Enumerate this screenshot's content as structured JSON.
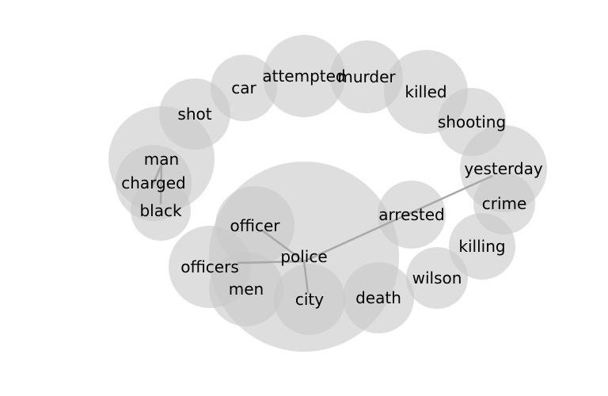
{
  "diagram": {
    "type": "word-cooccurrence-bubble-network",
    "words": [
      {
        "id": "police",
        "label": "police"
      },
      {
        "id": "officer",
        "label": "officer"
      },
      {
        "id": "officers",
        "label": "officers"
      },
      {
        "id": "men",
        "label": "men"
      },
      {
        "id": "city",
        "label": "city"
      },
      {
        "id": "death",
        "label": "death"
      },
      {
        "id": "arrested",
        "label": "arrested"
      },
      {
        "id": "wilson",
        "label": "wilson"
      },
      {
        "id": "killing",
        "label": "killing"
      },
      {
        "id": "crime",
        "label": "crime"
      },
      {
        "id": "yesterday",
        "label": "yesterday"
      },
      {
        "id": "shooting",
        "label": "shooting"
      },
      {
        "id": "killed",
        "label": "killed"
      },
      {
        "id": "murder",
        "label": "murder"
      },
      {
        "id": "attempted",
        "label": "attempted"
      },
      {
        "id": "car",
        "label": "car"
      },
      {
        "id": "shot",
        "label": "shot"
      },
      {
        "id": "man",
        "label": "man"
      },
      {
        "id": "charged",
        "label": "charged"
      },
      {
        "id": "black",
        "label": "black"
      }
    ],
    "edges": [
      {
        "source": "police",
        "target": "officer"
      },
      {
        "source": "police",
        "target": "officers"
      },
      {
        "source": "police",
        "target": "city"
      },
      {
        "source": "police",
        "target": "yesterday"
      },
      {
        "source": "man",
        "target": "charged"
      },
      {
        "source": "man",
        "target": "black"
      }
    ]
  }
}
